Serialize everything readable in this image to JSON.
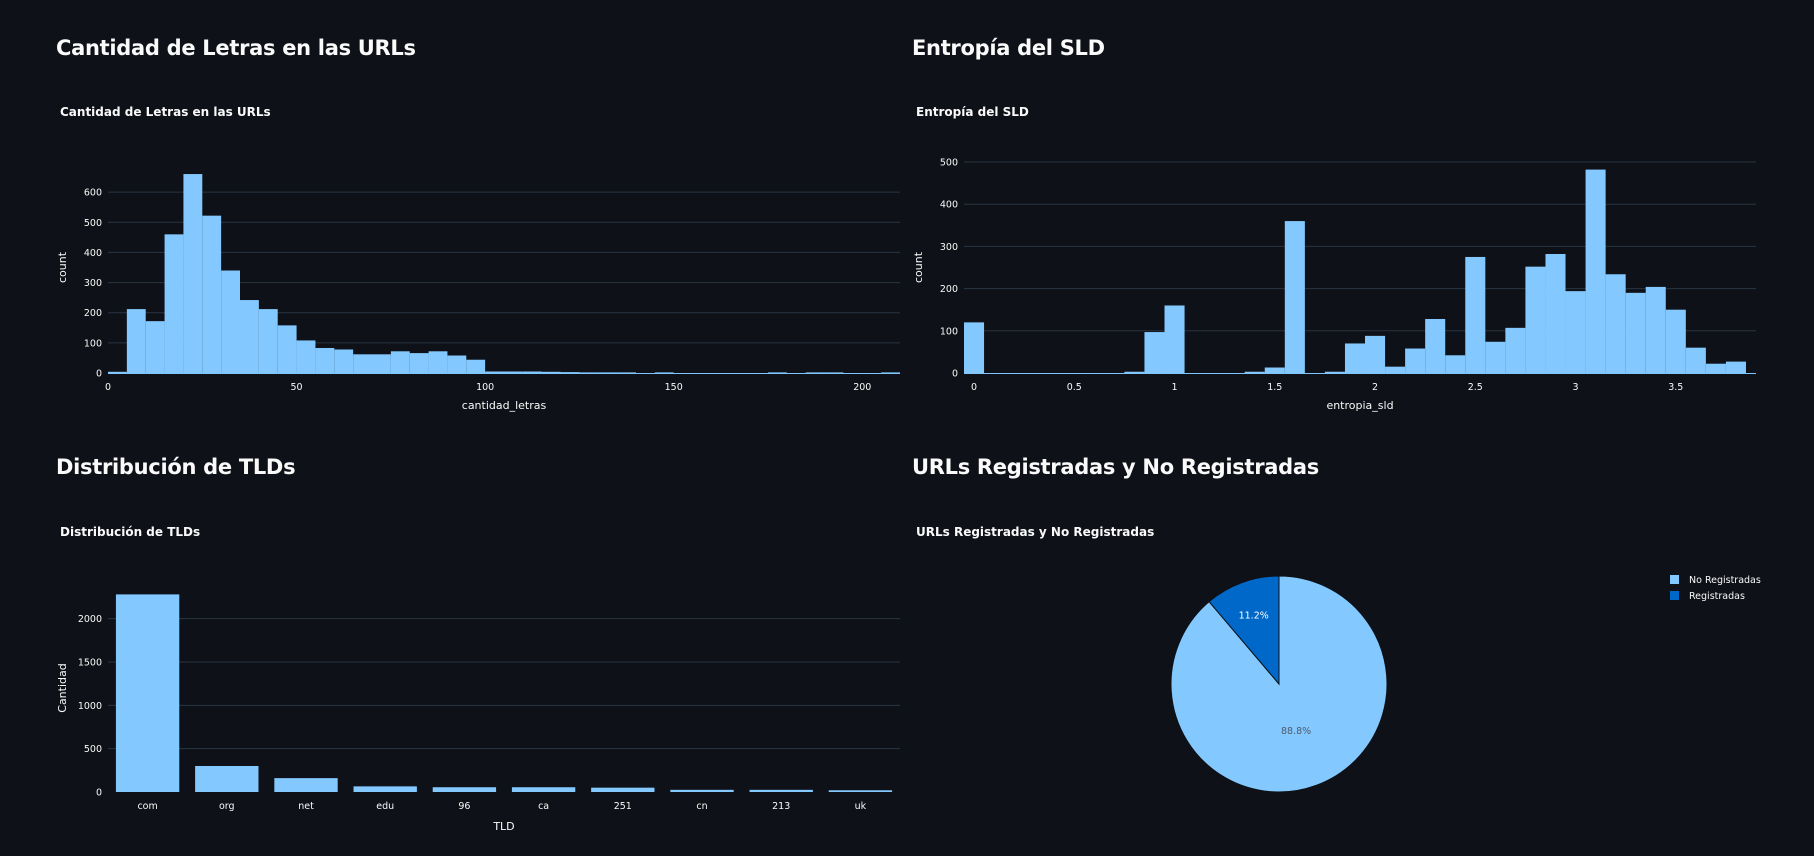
{
  "sections": [
    {
      "heading": "Cantidad de Letras en las URLs"
    },
    {
      "heading": "Entropía del SLD"
    },
    {
      "heading": "Distribución de TLDs"
    },
    {
      "heading": "URLs Registradas y No Registradas"
    }
  ],
  "chart_data": [
    {
      "type": "bar",
      "subtype": "histogram",
      "title": "Cantidad de Letras en las URLs",
      "xlabel": "cantidad_letras",
      "ylabel": "count",
      "bin_width": 5,
      "bins": [
        {
          "x0": 0,
          "count": 4
        },
        {
          "x0": 5,
          "count": 212
        },
        {
          "x0": 10,
          "count": 172
        },
        {
          "x0": 15,
          "count": 460
        },
        {
          "x0": 20,
          "count": 660
        },
        {
          "x0": 25,
          "count": 522
        },
        {
          "x0": 30,
          "count": 340
        },
        {
          "x0": 35,
          "count": 242
        },
        {
          "x0": 40,
          "count": 212
        },
        {
          "x0": 45,
          "count": 158
        },
        {
          "x0": 50,
          "count": 108
        },
        {
          "x0": 55,
          "count": 83
        },
        {
          "x0": 60,
          "count": 78
        },
        {
          "x0": 65,
          "count": 62
        },
        {
          "x0": 70,
          "count": 62
        },
        {
          "x0": 75,
          "count": 72
        },
        {
          "x0": 80,
          "count": 66
        },
        {
          "x0": 85,
          "count": 72
        },
        {
          "x0": 90,
          "count": 58
        },
        {
          "x0": 95,
          "count": 44
        },
        {
          "x0": 100,
          "count": 5
        },
        {
          "x0": 105,
          "count": 5
        },
        {
          "x0": 110,
          "count": 5
        },
        {
          "x0": 115,
          "count": 4
        },
        {
          "x0": 120,
          "count": 3
        },
        {
          "x0": 125,
          "count": 2
        },
        {
          "x0": 130,
          "count": 2
        },
        {
          "x0": 135,
          "count": 2
        },
        {
          "x0": 145,
          "count": 2
        },
        {
          "x0": 175,
          "count": 2
        },
        {
          "x0": 185,
          "count": 2
        },
        {
          "x0": 190,
          "count": 2
        },
        {
          "x0": 205,
          "count": 2
        }
      ],
      "xlim": [
        0,
        210
      ],
      "ylim": [
        0,
        700
      ],
      "xticks": [
        0,
        50,
        100,
        150,
        200
      ],
      "yticks": [
        0,
        100,
        200,
        300,
        400,
        500,
        600
      ],
      "grid": true,
      "color": "#83c9ff"
    },
    {
      "type": "bar",
      "subtype": "histogram",
      "title": "Entropía del SLD",
      "xlabel": "entropia_sld",
      "ylabel": "count",
      "bin_width": 0.1,
      "bins": [
        {
          "x0": -0.05,
          "count": 120
        },
        {
          "x0": 0.75,
          "count": 3
        },
        {
          "x0": 0.85,
          "count": 97
        },
        {
          "x0": 0.95,
          "count": 160
        },
        {
          "x0": 1.35,
          "count": 3
        },
        {
          "x0": 1.45,
          "count": 13
        },
        {
          "x0": 1.55,
          "count": 360
        },
        {
          "x0": 1.75,
          "count": 3
        },
        {
          "x0": 1.85,
          "count": 70
        },
        {
          "x0": 1.95,
          "count": 88
        },
        {
          "x0": 2.05,
          "count": 15
        },
        {
          "x0": 2.15,
          "count": 58
        },
        {
          "x0": 2.25,
          "count": 128
        },
        {
          "x0": 2.35,
          "count": 42
        },
        {
          "x0": 2.45,
          "count": 275
        },
        {
          "x0": 2.55,
          "count": 74
        },
        {
          "x0": 2.65,
          "count": 107
        },
        {
          "x0": 2.75,
          "count": 252
        },
        {
          "x0": 2.85,
          "count": 282
        },
        {
          "x0": 2.95,
          "count": 194
        },
        {
          "x0": 3.05,
          "count": 482
        },
        {
          "x0": 3.15,
          "count": 234
        },
        {
          "x0": 3.25,
          "count": 190
        },
        {
          "x0": 3.35,
          "count": 204
        },
        {
          "x0": 3.45,
          "count": 150
        },
        {
          "x0": 3.55,
          "count": 60
        },
        {
          "x0": 3.65,
          "count": 22
        },
        {
          "x0": 3.75,
          "count": 27
        }
      ],
      "xlim": [
        -0.05,
        3.9
      ],
      "ylim": [
        0,
        500
      ],
      "xticks": [
        0,
        0.5,
        1,
        1.5,
        2,
        2.5,
        3,
        3.5
      ],
      "yticks": [
        0,
        100,
        200,
        300,
        400,
        500
      ],
      "grid": true,
      "color": "#83c9ff"
    },
    {
      "type": "bar",
      "title": "Distribución de TLDs",
      "xlabel": "TLD",
      "ylabel": "Cantidad",
      "categories": [
        "com",
        "org",
        "net",
        "edu",
        "96",
        "ca",
        "251",
        "cn",
        "213",
        "uk"
      ],
      "values": [
        2280,
        300,
        160,
        65,
        55,
        55,
        50,
        25,
        25,
        20
      ],
      "ylim": [
        0,
        2400
      ],
      "yticks": [
        0,
        500,
        1000,
        1500,
        2000
      ],
      "grid": true,
      "color": "#83c9ff"
    },
    {
      "type": "pie",
      "title": "URLs Registradas y No Registradas",
      "slices": [
        {
          "label": "No Registradas",
          "value": 88.8,
          "text": "88.8%",
          "color": "#83c9ff",
          "text_color": "#4f5a6b"
        },
        {
          "label": "Registradas",
          "value": 11.2,
          "text": "11.2%",
          "color": "#0068c9",
          "text_color": "#ffffff"
        }
      ],
      "legend_position": "top-right"
    }
  ]
}
